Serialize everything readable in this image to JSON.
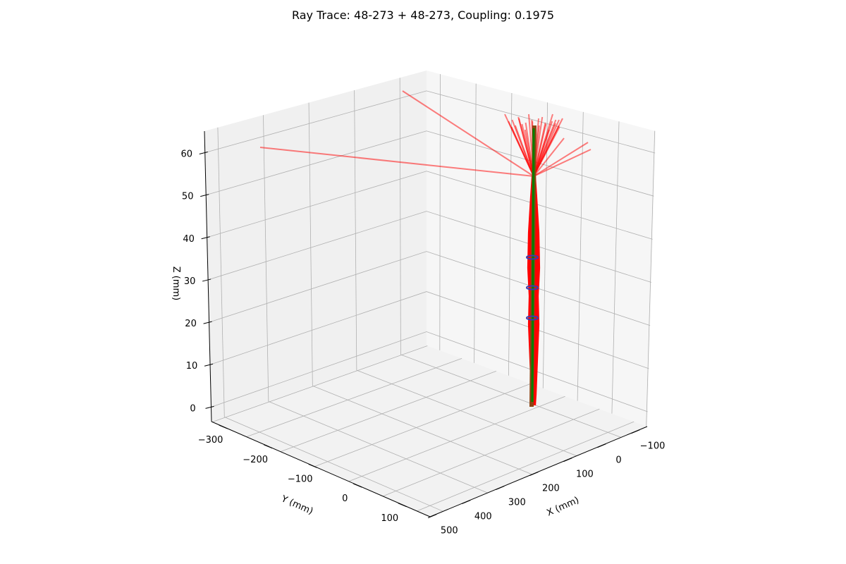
{
  "chart_data": {
    "type": "3d-line",
    "title": "Ray Trace: 48-273 + 48-273, Coupling: 0.1975",
    "xlabel": "X (mm)",
    "ylabel": "Y (mm)",
    "zlabel": "Z (mm)",
    "x_ticks": [
      "−100",
      "0",
      "100",
      "200",
      "300",
      "400",
      "500"
    ],
    "y_ticks": [
      "−300",
      "−200",
      "−100",
      "0",
      "100"
    ],
    "z_ticks": [
      "0",
      "10",
      "20",
      "30",
      "40",
      "50",
      "60"
    ],
    "xlim": [
      -150,
      520
    ],
    "ylim": [
      -330,
      160
    ],
    "zlim": [
      0,
      68
    ],
    "grid": true,
    "series": [
      {
        "role": "rays",
        "color": "#ff0000",
        "alpha": 0.5
      },
      {
        "role": "core",
        "color": "#008000"
      },
      {
        "role": "fiber",
        "color": "#8b4513"
      },
      {
        "role": "markers",
        "color": "#3b3bb0"
      }
    ]
  }
}
